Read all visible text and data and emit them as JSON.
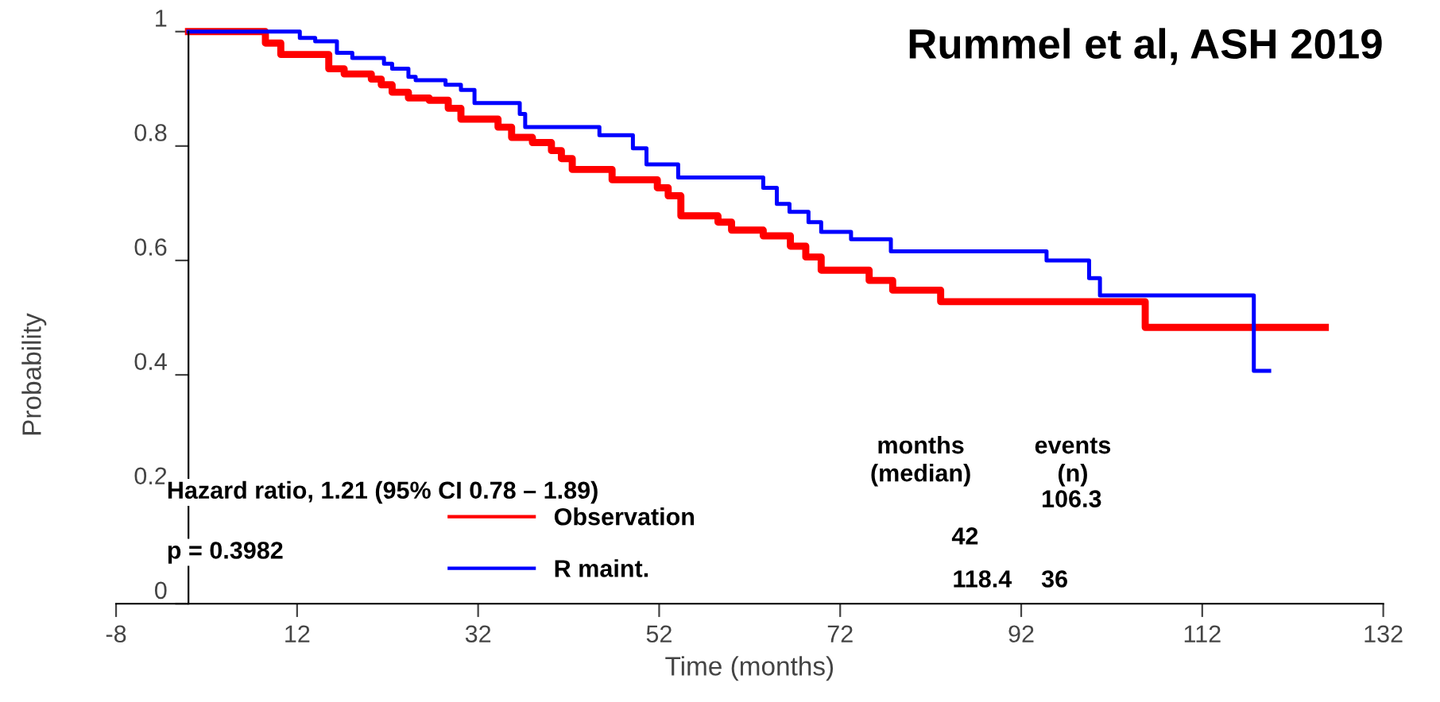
{
  "chart_data": {
    "type": "step",
    "title": "Rummel et al, ASH 2019",
    "xlabel": "Time (months)",
    "ylabel": "Probability",
    "series": [
      {
        "name": "Observation",
        "color": "#ff0000",
        "x": [
          0,
          8.5,
          10.2,
          15.5,
          17.2,
          20.2,
          21.3,
          22.5,
          24.3,
          26.6,
          28.7,
          30.1,
          34.2,
          35.7,
          38.0,
          40.1,
          41.2,
          42.4,
          46.8,
          51.8,
          53.0,
          54.4,
          58.5,
          60.0,
          63.5,
          66.5,
          68.2,
          69.9,
          75.2,
          77.8,
          83.1,
          105.7,
          125.6
        ],
        "values": [
          1,
          0.98,
          0.96,
          0.935,
          0.926,
          0.917,
          0.907,
          0.894,
          0.884,
          0.88,
          0.866,
          0.847,
          0.833,
          0.815,
          0.806,
          0.792,
          0.778,
          0.759,
          0.741,
          0.727,
          0.713,
          0.678,
          0.667,
          0.653,
          0.643,
          0.625,
          0.606,
          0.583,
          0.565,
          0.548,
          0.528,
          0.483,
          0.483
        ]
      },
      {
        "name": "R maint.",
        "color": "#0000ff",
        "x": [
          0,
          12.3,
          14.0,
          16.4,
          18.1,
          21.6,
          22.5,
          24.3,
          25.1,
          28.4,
          30.1,
          31.6,
          36.6,
          37.2,
          45.4,
          49.1,
          50.6,
          54.1,
          63.5,
          65.0,
          66.4,
          68.5,
          69.9,
          73.2,
          77.6,
          94.8,
          99.5,
          100.7,
          117.7,
          119.4
        ],
        "values": [
          1,
          0.989,
          0.983,
          0.963,
          0.954,
          0.944,
          0.935,
          0.921,
          0.915,
          0.907,
          0.898,
          0.875,
          0.856,
          0.833,
          0.819,
          0.796,
          0.768,
          0.745,
          0.727,
          0.699,
          0.685,
          0.667,
          0.65,
          0.637,
          0.616,
          0.6,
          0.569,
          0.539,
          0.407,
          0.407
        ]
      }
    ],
    "xlim": [
      -8,
      132
    ],
    "xticks": [
      -8,
      12,
      32,
      52,
      72,
      92,
      112,
      132
    ],
    "ylim": [
      0,
      1
    ],
    "yticks": [
      0,
      0.2,
      0.4,
      0.6,
      0.8,
      1
    ],
    "grid": false,
    "legend": "bottom",
    "annotations": [
      "Hazard ratio, 1.21 (95% CI 0.78 – 1.89)",
      "p = 0.3982",
      "months\n(median)",
      "events\n(n)",
      "106.3",
      "42",
      "118.4",
      "36"
    ]
  }
}
